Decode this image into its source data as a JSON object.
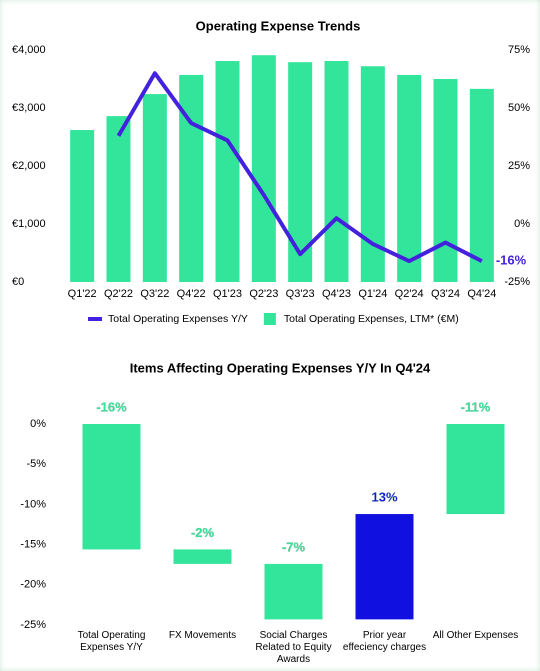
{
  "chart_data": [
    {
      "type": "bar_line",
      "title": "Operating Expense Trends",
      "categories": [
        "Q1'22",
        "Q2'22",
        "Q3'22",
        "Q4'22",
        "Q1'23",
        "Q2'23",
        "Q3'23",
        "Q4'23",
        "Q1'24",
        "Q2'24",
        "Q3'24",
        "Q4'24"
      ],
      "series": [
        {
          "name": "Total Operating Expenses Y/Y",
          "type": "line",
          "axis": "y2",
          "color": "#4422dd",
          "values": [
            null,
            38,
            65,
            43.5,
            36,
            12.5,
            -13,
            2.5,
            -8.6,
            -16,
            -8,
            -16
          ],
          "value_labels": [
            null,
            null,
            null,
            null,
            null,
            null,
            null,
            null,
            null,
            null,
            null,
            "-16%"
          ]
        },
        {
          "name": "Total Operating Expenses, LTM* (€M)",
          "type": "bar",
          "axis": "y",
          "color": "#33e59b",
          "values": [
            2620,
            2860,
            3240,
            3570,
            3810,
            3910,
            3790,
            3810,
            3720,
            3570,
            3500,
            3330
          ]
        }
      ],
      "ylim": [
        0,
        4000
      ],
      "yticks": [
        {
          "value": 0,
          "label": "€0"
        },
        {
          "value": 1000,
          "label": "€1,000"
        },
        {
          "value": 2000,
          "label": "€2,000"
        },
        {
          "value": 3000,
          "label": "€3,000"
        },
        {
          "value": 4000,
          "label": "€4,000"
        }
      ],
      "y2lim": [
        -25,
        75
      ],
      "y2ticks": [
        {
          "value": -25,
          "label": "-25%"
        },
        {
          "value": 0,
          "label": "0%"
        },
        {
          "value": 25,
          "label": "25%"
        },
        {
          "value": 50,
          "label": "50%"
        },
        {
          "value": 75,
          "label": "75%"
        }
      ],
      "legend": "bottom"
    },
    {
      "type": "waterfall",
      "title": "Items Affecting Operating Expenses Y/Y In Q4'24",
      "categories": [
        "Total Operating Expenses Y/Y",
        "FX Movements",
        "Social Charges Related to Equity Awards",
        "Prior year effeciency charges",
        "All Other Expenses"
      ],
      "values": [
        -15.6,
        -1.8,
        -6.9,
        13.1,
        -11.2
      ],
      "value_labels": [
        "-16%",
        "-2%",
        "-7%",
        "13%",
        "-11%"
      ],
      "measure": [
        "absolute",
        "relative",
        "relative",
        "relative",
        "total"
      ],
      "colors": [
        "#33e59b",
        "#33e59b",
        "#33e59b",
        "#1010e0",
        "#33e59b"
      ],
      "ylim": [
        -25,
        0
      ],
      "yticks": [
        {
          "value": 0,
          "label": "0%"
        },
        {
          "value": -5,
          "label": "-5%"
        },
        {
          "value": -10,
          "label": "-10%"
        },
        {
          "value": -15,
          "label": "-15%"
        },
        {
          "value": -20,
          "label": "-20%"
        },
        {
          "value": -25,
          "label": "-25%"
        }
      ]
    }
  ]
}
